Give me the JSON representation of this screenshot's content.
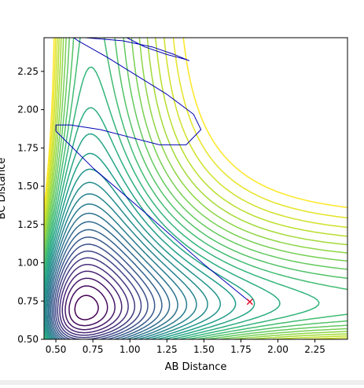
{
  "chart_data": {
    "type": "contour",
    "xlabel": "AB Distance",
    "ylabel": "BC Distance",
    "xlim": [
      0.42,
      2.47
    ],
    "ylim": [
      0.5,
      2.47
    ],
    "x_ticks": [
      0.5,
      0.75,
      1.0,
      1.25,
      1.5,
      1.75,
      2.0,
      2.25
    ],
    "x_tick_labels": [
      "0.50",
      "0.75",
      "1.00",
      "1.25",
      "1.50",
      "1.75",
      "2.00",
      "2.25"
    ],
    "y_ticks": [
      0.5,
      0.75,
      1.0,
      1.25,
      1.5,
      1.75,
      2.0,
      2.25
    ],
    "y_tick_labels": [
      "0.50",
      "0.75",
      "1.00",
      "1.25",
      "1.50",
      "1.75",
      "2.00",
      "2.25"
    ],
    "colormap": "viridis",
    "contour_count": 30,
    "grid": false,
    "trajectory": {
      "color": "#0000b3",
      "points": [
        [
          1.81,
          0.745
        ],
        [
          1.5,
          0.99
        ],
        [
          1.1,
          1.33
        ],
        [
          0.75,
          1.62
        ],
        [
          0.5,
          1.86
        ],
        [
          0.5,
          1.9
        ],
        [
          0.6,
          1.9
        ],
        [
          0.8,
          1.87
        ],
        [
          1.0,
          1.82
        ],
        [
          1.2,
          1.77
        ],
        [
          1.38,
          1.77
        ],
        [
          1.48,
          1.87
        ],
        [
          1.43,
          1.97
        ],
        [
          1.25,
          2.1
        ],
        [
          1.05,
          2.22
        ],
        [
          0.85,
          2.34
        ],
        [
          0.65,
          2.45
        ],
        [
          0.62,
          2.47
        ],
        [
          0.7,
          2.47
        ],
        [
          0.95,
          2.45
        ],
        [
          1.15,
          2.41
        ],
        [
          1.3,
          2.36
        ],
        [
          1.4,
          2.32
        ],
        [
          1.37,
          2.33
        ],
        [
          1.25,
          2.36
        ],
        [
          1.1,
          2.41
        ],
        [
          0.98,
          2.47
        ]
      ]
    },
    "start_marker": {
      "x": 1.81,
      "y": 0.745,
      "symbol": "x",
      "color": "#e3102a"
    }
  }
}
